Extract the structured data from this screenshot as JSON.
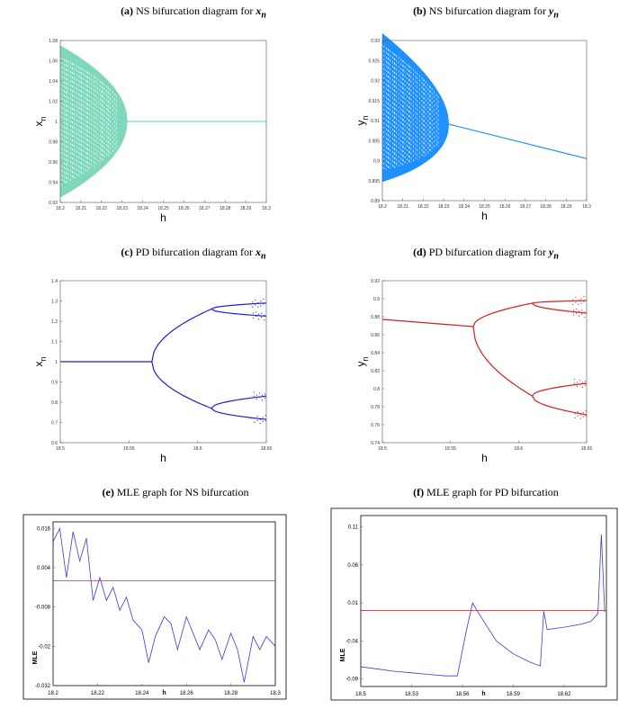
{
  "titles": {
    "a": {
      "tag": "(a)",
      "text": "NS bifurcation diagram for",
      "var": "x",
      "sub": "n"
    },
    "b": {
      "tag": "(b)",
      "text": "NS bifurcation diagram for",
      "var": "y",
      "sub": "n"
    },
    "c": {
      "tag": "(c)",
      "text": "PD bifurcation diagram for",
      "var": "x",
      "sub": "n"
    },
    "d": {
      "tag": "(d)",
      "text": "PD bifurcation diagram for",
      "var": "y",
      "sub": "n"
    },
    "e": {
      "tag": "(e)",
      "text": "MLE graph for NS bifurcation"
    },
    "f": {
      "tag": "(f)",
      "text": "MLE graph for PD bifurcation"
    }
  },
  "colors": {
    "a": "#7fd8bc",
    "b": "#1e90ff",
    "c": "#1f1fd0",
    "d": "#d01f1f",
    "mle_curve": "#3a3ad6",
    "mle_zero": "#e03030"
  },
  "chart_data": [
    {
      "id": "a",
      "type": "scatter",
      "xlabel": "h",
      "ylabel": "x",
      "ylabel_sub": "n",
      "xlim": [
        18.2,
        18.3
      ],
      "ylim": [
        0.92,
        1.08
      ],
      "xticks": [
        "18.2",
        "18.21",
        "18.22",
        "18.23",
        "18.24",
        "18.25",
        "18.26",
        "18.27",
        "18.28",
        "18.29",
        "18.3"
      ],
      "yticks": [
        "0.92",
        "0.94",
        "0.96",
        "0.98",
        "1",
        "1.02",
        "1.04",
        "1.06",
        "1.08"
      ],
      "bifurcation_point": 18.2325,
      "fixed_value": 1.0,
      "amplitude_at_start": 0.075
    },
    {
      "id": "b",
      "type": "scatter",
      "xlabel": "h",
      "ylabel": "y",
      "ylabel_sub": "n",
      "xlim": [
        18.2,
        18.3
      ],
      "ylim": [
        0.89,
        0.93
      ],
      "xticks": [
        "18.2",
        "18.21",
        "18.22",
        "18.23",
        "18.24",
        "18.25",
        "18.26",
        "18.27",
        "18.28",
        "18.29",
        "18.3"
      ],
      "yticks": [
        "0.89",
        "0.895",
        "0.9",
        "0.905",
        "0.91",
        "0.915",
        "0.92",
        "0.925",
        "0.93"
      ],
      "bifurcation_point": 18.2325,
      "fixed_start": 0.9091,
      "fixed_end": 0.9005,
      "amplitude_at_start": 0.0185
    },
    {
      "id": "c",
      "type": "line",
      "xlabel": "h",
      "ylabel": "x",
      "ylabel_sub": "n",
      "xlim": [
        18.5,
        18.65
      ],
      "ylim": [
        0.6,
        1.4
      ],
      "xticks": [
        "18.5",
        "18.55",
        "18.6",
        "18.65"
      ],
      "yticks": [
        "0.6",
        "0.7",
        "0.8",
        "0.9",
        "1",
        "1.1",
        "1.2",
        "1.3",
        "1.4"
      ],
      "pd1": 18.5667,
      "pd2": 18.61,
      "fixed": 1.0,
      "branch_high_at_pd2": 1.26,
      "branch_low_at_pd2": 0.77,
      "end_values": [
        1.29,
        1.225,
        0.83,
        0.715
      ]
    },
    {
      "id": "d",
      "type": "line",
      "xlabel": "h",
      "ylabel": "y",
      "ylabel_sub": "n",
      "xlim": [
        18.5,
        18.65
      ],
      "ylim": [
        0.74,
        0.92
      ],
      "xticks": [
        "18.5",
        "18.55",
        "18.6",
        "18.65"
      ],
      "yticks": [
        "0.74",
        "0.76",
        "0.78",
        "0.8",
        "0.82",
        "0.84",
        "0.86",
        "0.88",
        "0.9",
        "0.92"
      ],
      "pd1": 18.5667,
      "pd2": 18.61,
      "fixed_start": 0.877,
      "fixed_end": 0.869,
      "branch_high_at_pd2": 0.895,
      "branch_low_at_pd2": 0.792,
      "end_values": [
        0.898,
        0.884,
        0.806,
        0.771
      ]
    },
    {
      "id": "e",
      "type": "line",
      "xlabel": "h",
      "ylabel": "MLE",
      "xlim": [
        18.2,
        18.3
      ],
      "ylim": [
        -0.032,
        0.018
      ],
      "xticks": [
        "18.2",
        "18.22",
        "18.24",
        "18.26",
        "18.28",
        "18.3"
      ],
      "yticks": [
        "0.016",
        "0.004",
        "-0.008",
        "-0.02",
        "-0.032"
      ],
      "zero_line": 0,
      "x": [
        18.2,
        18.203,
        18.206,
        18.209,
        18.212,
        18.215,
        18.218,
        18.221,
        18.224,
        18.227,
        18.23,
        18.233,
        18.236,
        18.24,
        18.243,
        18.246,
        18.25,
        18.253,
        18.256,
        18.26,
        18.263,
        18.266,
        18.27,
        18.273,
        18.276,
        18.28,
        18.283,
        18.286,
        18.29,
        18.293,
        18.296,
        18.3
      ],
      "y": [
        0.012,
        0.016,
        0.001,
        0.015,
        0.006,
        0.013,
        -0.006,
        0.001,
        -0.006,
        -0.002,
        -0.009,
        -0.005,
        -0.012,
        -0.015,
        -0.025,
        -0.017,
        -0.011,
        -0.013,
        -0.021,
        -0.011,
        -0.016,
        -0.021,
        -0.015,
        -0.018,
        -0.024,
        -0.016,
        -0.021,
        -0.031,
        -0.017,
        -0.021,
        -0.017,
        -0.02
      ]
    },
    {
      "id": "f",
      "type": "line",
      "xlabel": "h",
      "ylabel": "MLE",
      "xlim": [
        18.5,
        18.645
      ],
      "ylim": [
        -0.1,
        0.125
      ],
      "xticks": [
        "18.5",
        "18.53",
        "18.56",
        "18.59",
        "18.62"
      ],
      "yticks": [
        "0.11",
        "0.06",
        "0.01",
        "-0.04",
        "-0.09"
      ],
      "zero_line": 0,
      "x": [
        18.5,
        18.51,
        18.52,
        18.53,
        18.54,
        18.55,
        18.557,
        18.562,
        18.566,
        18.57,
        18.58,
        18.59,
        18.6,
        18.606,
        18.608,
        18.61,
        18.62,
        18.63,
        18.636,
        18.64,
        18.642,
        18.644
      ],
      "y": [
        -0.074,
        -0.077,
        -0.08,
        -0.082,
        -0.084,
        -0.086,
        -0.086,
        -0.03,
        0.01,
        -0.005,
        -0.04,
        -0.057,
        -0.068,
        -0.073,
        -0.001,
        -0.025,
        -0.022,
        -0.018,
        -0.014,
        -0.004,
        0.1,
        -0.002
      ]
    }
  ]
}
